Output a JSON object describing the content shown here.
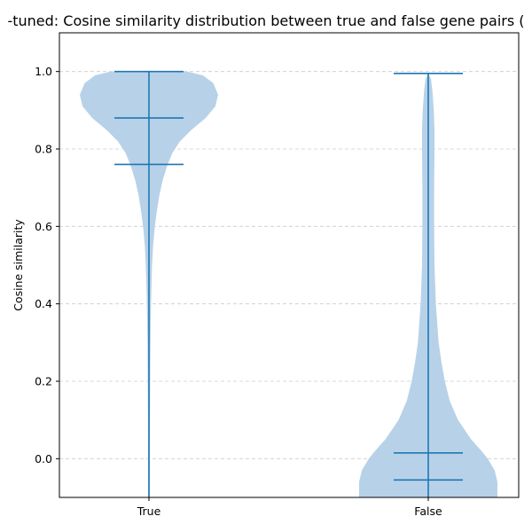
{
  "chart_data": {
    "type": "violin",
    "title": "-tuned: Cosine similarity distribution between true and false gene pairs (",
    "xlabel": "",
    "ylabel": "Cosine similarity",
    "categories": [
      "True",
      "False"
    ],
    "ylim": [
      -0.1,
      1.1
    ],
    "yticks": [
      "0.0",
      "0.2",
      "0.4",
      "0.6",
      "0.8",
      "1.0"
    ],
    "ytick_values": [
      0.0,
      0.2,
      0.4,
      0.6,
      0.8,
      1.0
    ],
    "grid": "y-dashed",
    "color": "#1f77b4",
    "fill_color": "#b7d2e8",
    "series": [
      {
        "category": "True",
        "max": 1.0,
        "q_upper": 0.88,
        "q_lower": 0.76,
        "min": -0.1,
        "density_profile": [
          [
            1.0,
            0.55
          ],
          [
            0.99,
            0.78
          ],
          [
            0.97,
            0.93
          ],
          [
            0.94,
            1.0
          ],
          [
            0.91,
            0.96
          ],
          [
            0.88,
            0.82
          ],
          [
            0.85,
            0.62
          ],
          [
            0.82,
            0.45
          ],
          [
            0.79,
            0.34
          ],
          [
            0.76,
            0.27
          ],
          [
            0.72,
            0.2
          ],
          [
            0.68,
            0.15
          ],
          [
            0.64,
            0.115
          ],
          [
            0.6,
            0.085
          ],
          [
            0.55,
            0.06
          ],
          [
            0.5,
            0.045
          ],
          [
            0.4,
            0.03
          ],
          [
            0.3,
            0.022
          ],
          [
            0.2,
            0.018
          ],
          [
            0.1,
            0.015
          ],
          [
            0.0,
            0.013
          ],
          [
            -0.1,
            0.012
          ]
        ]
      },
      {
        "category": "False",
        "max": 0.995,
        "q_upper": 0.015,
        "q_lower": -0.055,
        "min": -0.1,
        "density_profile": [
          [
            0.995,
            0.0
          ],
          [
            0.98,
            0.04
          ],
          [
            0.95,
            0.06
          ],
          [
            0.9,
            0.08
          ],
          [
            0.85,
            0.09
          ],
          [
            0.8,
            0.09
          ],
          [
            0.7,
            0.085
          ],
          [
            0.6,
            0.085
          ],
          [
            0.5,
            0.09
          ],
          [
            0.4,
            0.11
          ],
          [
            0.3,
            0.15
          ],
          [
            0.25,
            0.19
          ],
          [
            0.2,
            0.24
          ],
          [
            0.15,
            0.31
          ],
          [
            0.1,
            0.43
          ],
          [
            0.05,
            0.62
          ],
          [
            0.02,
            0.77
          ],
          [
            0.0,
            0.86
          ],
          [
            -0.03,
            0.96
          ],
          [
            -0.06,
            1.0
          ],
          [
            -0.1,
            1.0
          ]
        ]
      }
    ]
  }
}
